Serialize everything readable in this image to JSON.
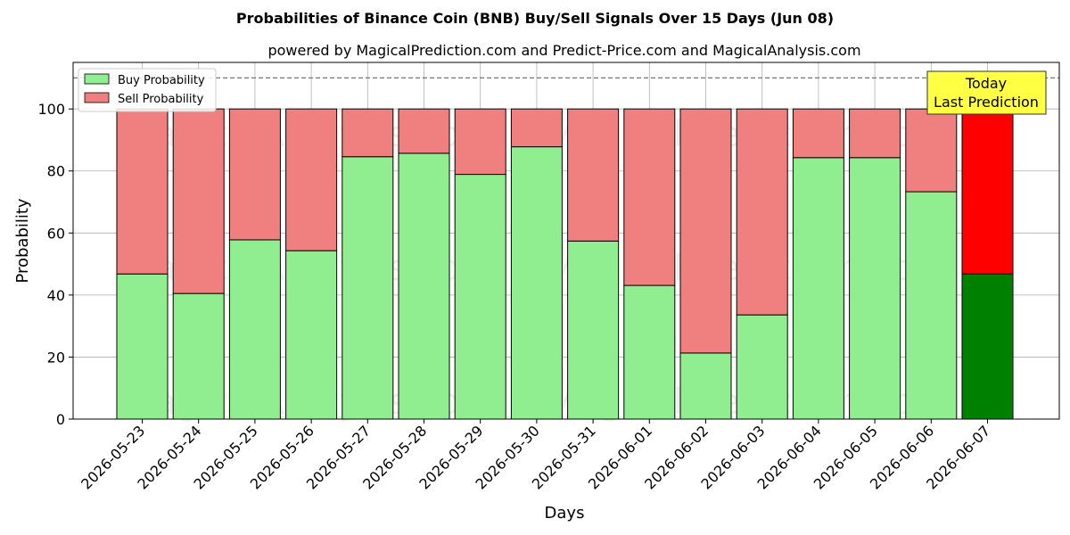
{
  "chart_data": {
    "type": "bar",
    "title": "Probabilities of Binance Coin (BNB) Buy/Sell Signals Over 15 Days (Jun 08)",
    "subtitle": "powered by MagicalPrediction.com and Predict-Price.com and MagicalAnalysis.com",
    "xlabel": "Days",
    "ylabel": "Probability",
    "ylim": [
      0,
      115
    ],
    "yticks": [
      0,
      20,
      40,
      60,
      80,
      100
    ],
    "reference_line": 110,
    "grid": true,
    "stacked": true,
    "legend_position": "top-left",
    "categories": [
      "2026-05-23",
      "2026-05-24",
      "2026-05-25",
      "2026-05-26",
      "2026-05-27",
      "2026-05-28",
      "2026-05-29",
      "2026-05-30",
      "2026-05-31",
      "2026-06-01",
      "2026-06-02",
      "2026-06-03",
      "2026-06-04",
      "2026-06-05",
      "2026-06-06",
      "2026-06-07"
    ],
    "series": [
      {
        "name": "Buy Probability",
        "color": "#90ee90",
        "highlight_color": "#008000",
        "values": [
          46.8,
          40.5,
          57.8,
          54.3,
          84.6,
          85.7,
          78.9,
          87.8,
          57.4,
          43.1,
          21.3,
          33.6,
          84.3,
          84.3,
          73.3,
          46.8
        ]
      },
      {
        "name": "Sell Probability",
        "color": "#f08080",
        "highlight_color": "#ff0000",
        "values": [
          53.2,
          59.5,
          42.2,
          45.7,
          15.4,
          14.3,
          21.1,
          12.2,
          42.6,
          56.9,
          78.7,
          66.4,
          15.7,
          15.7,
          26.7,
          53.2
        ]
      }
    ],
    "annotation": {
      "line1": "Today",
      "line2": "Last Prediction",
      "color": "#ffff44"
    },
    "watermarks": [
      "MagicalAnalysis.com",
      "MagicalPrediction.com"
    ]
  }
}
